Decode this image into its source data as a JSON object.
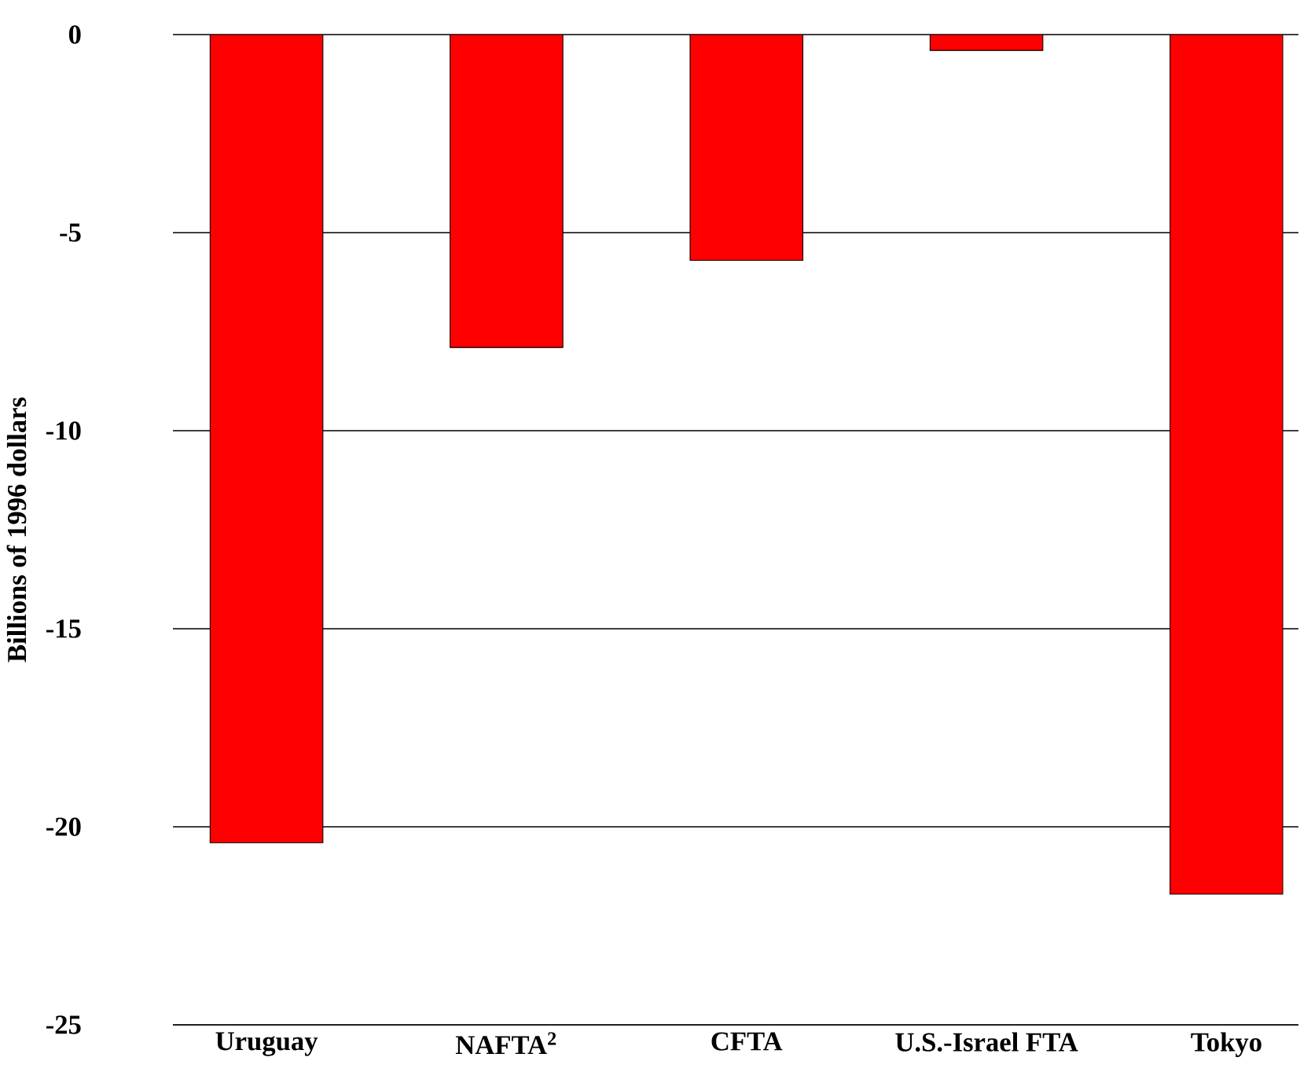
{
  "chart_data": {
    "type": "bar",
    "ylabel": "Billions of 1996 dollars",
    "categories": [
      "Uruguay",
      "NAFTA$^{2}$",
      "CFTA",
      "U.S.-Israel FTA",
      "Tokyo"
    ],
    "values": [
      -20.4,
      -7.9,
      -5.7,
      -0.4,
      -21.7
    ],
    "color": "#ff0000",
    "ylim": [
      -25,
      0
    ],
    "yticks": [
      -25,
      -20,
      -15,
      -10,
      -5,
      0
    ],
    "grid": "y"
  }
}
